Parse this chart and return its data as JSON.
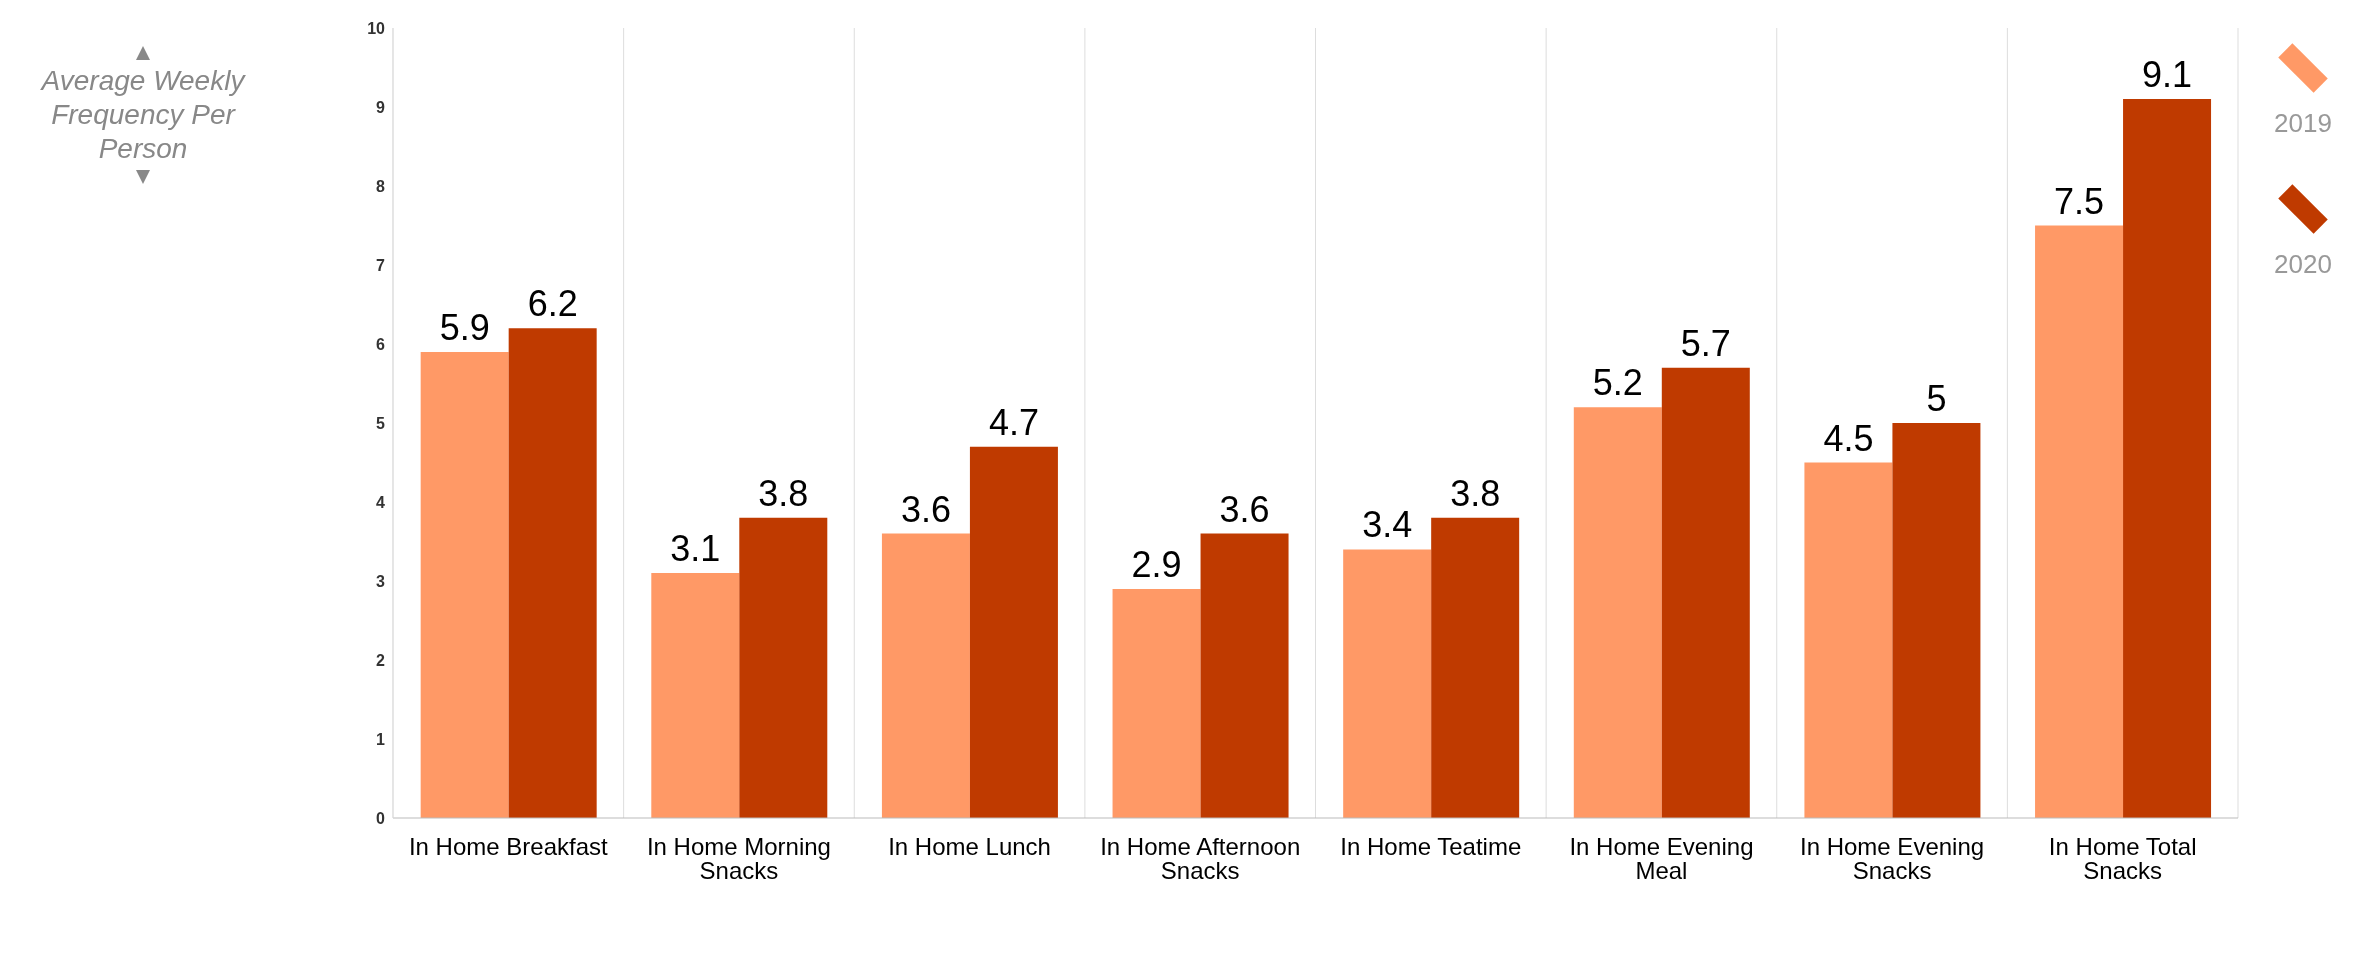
{
  "chart_data": {
    "type": "bar",
    "ylabel": "Average Weekly Frequency Per Person",
    "categories": [
      "In Home Breakfast",
      "In Home Morning Snacks",
      "In Home Lunch",
      "In Home Afternoon Snacks",
      "In Home Teatime",
      "In Home Evening Meal",
      "In Home Evening Snacks",
      "In Home Total Snacks"
    ],
    "series": [
      {
        "name": "2019",
        "color": "#ff9966",
        "values": [
          5.9,
          3.1,
          3.6,
          2.9,
          3.4,
          5.2,
          4.5,
          7.5
        ]
      },
      {
        "name": "2020",
        "color": "#bf3a00",
        "values": [
          6.2,
          3.8,
          4.7,
          3.6,
          3.8,
          5.7,
          5,
          9.1
        ]
      }
    ],
    "ylim": [
      0,
      10
    ],
    "yticks": [
      0,
      1,
      2,
      3,
      4,
      5,
      6,
      7,
      8,
      9,
      10
    ],
    "grid": "x",
    "legend": "right",
    "data_labels": true
  }
}
